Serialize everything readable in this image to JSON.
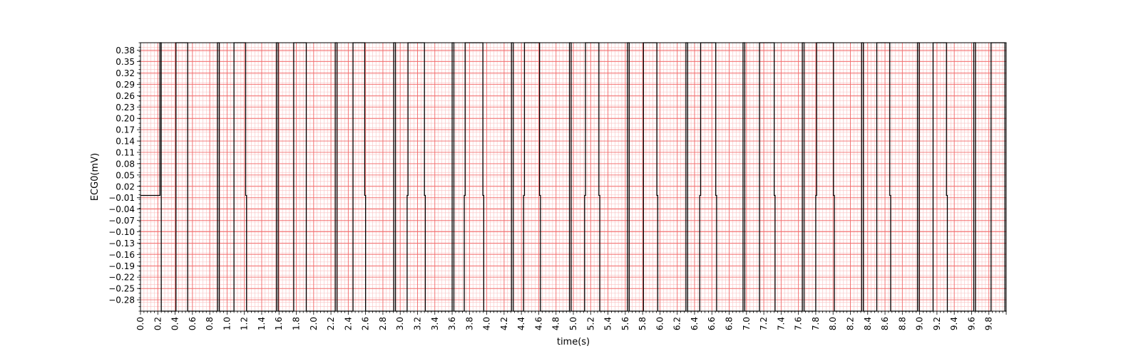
{
  "chart_data": {
    "type": "line",
    "title": "",
    "xlabel": "time(s)",
    "ylabel": "ECG0(mV)",
    "xlim": [
      0.0,
      10.0
    ],
    "ylim": [
      -0.31,
      0.4
    ],
    "grid": true,
    "grid_style": "ecg-paper",
    "colors": {
      "major_grid": "#f26b6b",
      "minor_grid": "#f9c0c0",
      "line": "#000000",
      "frame": "#000000"
    },
    "x_tick_labels": [
      "0.0",
      "0.2",
      "0.4",
      "0.6",
      "0.8",
      "1.0",
      "1.2",
      "1.4",
      "1.6",
      "1.8",
      "2.0",
      "2.2",
      "2.4",
      "2.6",
      "2.8",
      "3.0",
      "3.2",
      "3.4",
      "3.6",
      "3.8",
      "4.0",
      "4.2",
      "4.4",
      "4.6",
      "4.8",
      "5.0",
      "5.2",
      "5.4",
      "5.6",
      "5.8",
      "6.0",
      "6.2",
      "6.4",
      "6.6",
      "6.8",
      "7.0",
      "7.2",
      "7.4",
      "7.6",
      "7.8",
      "8.0",
      "8.2",
      "8.4",
      "8.6",
      "8.8",
      "9.0",
      "9.2",
      "9.4",
      "9.6",
      "9.8"
    ],
    "y_tick_labels": [
      "0.38",
      "0.35",
      "0.32",
      "0.29",
      "0.26",
      "0.23",
      "0.20",
      "0.17",
      "0.14",
      "0.11",
      "0.08",
      "0.05",
      "0.02",
      "−0.01",
      "−0.04",
      "−0.07",
      "−0.10",
      "−0.13",
      "−0.16",
      "−0.19",
      "−0.22",
      "−0.25",
      "−0.28"
    ],
    "series": [
      {
        "transitions": [
          {
            "x": 0.225,
            "direction": "up-from-baseline"
          },
          {
            "x": 0.24,
            "direction": "down"
          },
          {
            "x": 0.41,
            "direction": "up"
          },
          {
            "x": 0.545,
            "direction": "down"
          },
          {
            "x": 0.89,
            "direction": "up"
          },
          {
            "x": 0.91,
            "direction": "down"
          },
          {
            "x": 1.08,
            "direction": "up"
          },
          {
            "x": 1.225,
            "direction": "down-to-baseline"
          },
          {
            "x": 1.57,
            "direction": "up"
          },
          {
            "x": 1.59,
            "direction": "down"
          },
          {
            "x": 1.77,
            "direction": "up"
          },
          {
            "x": 1.915,
            "direction": "down"
          },
          {
            "x": 2.25,
            "direction": "up"
          },
          {
            "x": 2.27,
            "direction": "down"
          },
          {
            "x": 2.455,
            "direction": "up"
          },
          {
            "x": 2.6,
            "direction": "down-to-baseline"
          },
          {
            "x": 2.925,
            "direction": "up"
          },
          {
            "x": 2.945,
            "direction": "down"
          },
          {
            "x": 3.09,
            "direction": "up-from-baseline"
          },
          {
            "x": 3.29,
            "direction": "down-to-baseline"
          },
          {
            "x": 3.6,
            "direction": "up"
          },
          {
            "x": 3.62,
            "direction": "down"
          },
          {
            "x": 3.75,
            "direction": "up-from-baseline"
          },
          {
            "x": 3.965,
            "direction": "down-to-baseline"
          },
          {
            "x": 4.285,
            "direction": "up"
          },
          {
            "x": 4.305,
            "direction": "down"
          },
          {
            "x": 4.435,
            "direction": "up-from-baseline"
          },
          {
            "x": 4.62,
            "direction": "down-to-baseline"
          },
          {
            "x": 4.955,
            "direction": "up"
          },
          {
            "x": 4.975,
            "direction": "down"
          },
          {
            "x": 5.14,
            "direction": "up-from-baseline"
          },
          {
            "x": 5.305,
            "direction": "down-to-baseline"
          },
          {
            "x": 5.625,
            "direction": "up"
          },
          {
            "x": 5.645,
            "direction": "down"
          },
          {
            "x": 5.81,
            "direction": "up"
          },
          {
            "x": 5.975,
            "direction": "down-to-baseline"
          },
          {
            "x": 6.3,
            "direction": "up"
          },
          {
            "x": 6.32,
            "direction": "down"
          },
          {
            "x": 6.47,
            "direction": "up-from-baseline"
          },
          {
            "x": 6.655,
            "direction": "down-to-baseline"
          },
          {
            "x": 6.96,
            "direction": "up"
          },
          {
            "x": 6.98,
            "direction": "down"
          },
          {
            "x": 7.15,
            "direction": "up"
          },
          {
            "x": 7.33,
            "direction": "down-to-baseline"
          },
          {
            "x": 7.645,
            "direction": "up"
          },
          {
            "x": 7.665,
            "direction": "down"
          },
          {
            "x": 7.81,
            "direction": "up-from-baseline"
          },
          {
            "x": 8.015,
            "direction": "down-to-baseline"
          },
          {
            "x": 8.33,
            "direction": "up"
          },
          {
            "x": 8.35,
            "direction": "down"
          },
          {
            "x": 8.505,
            "direction": "up"
          },
          {
            "x": 8.665,
            "direction": "down-to-baseline"
          },
          {
            "x": 8.975,
            "direction": "up"
          },
          {
            "x": 8.995,
            "direction": "down"
          },
          {
            "x": 9.155,
            "direction": "up"
          },
          {
            "x": 9.32,
            "direction": "down-to-baseline"
          },
          {
            "x": 9.625,
            "direction": "up"
          },
          {
            "x": 9.645,
            "direction": "down"
          },
          {
            "x": 9.825,
            "direction": "up"
          },
          {
            "x": 9.985,
            "direction": "down"
          }
        ],
        "high": 0.4,
        "low": -0.31,
        "baseline": -0.004
      }
    ]
  }
}
